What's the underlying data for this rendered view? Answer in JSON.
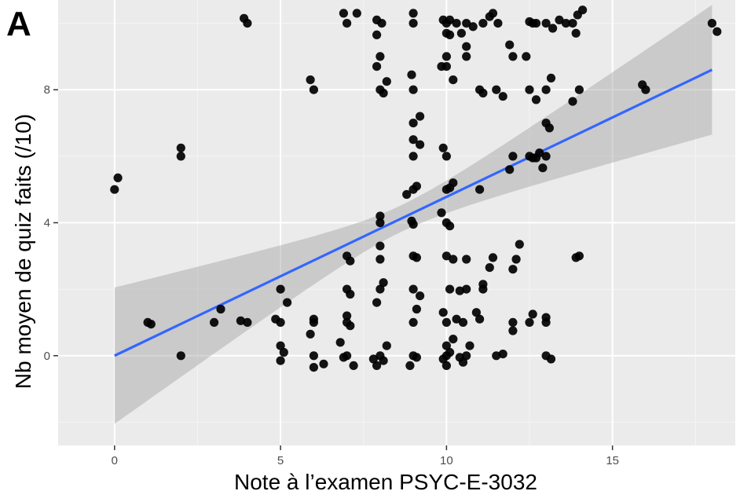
{
  "panel_label": "A",
  "colors": {
    "panel_bg": "#EBEBEB",
    "grid_major": "#FFFFFF",
    "grid_minor": "#F5F5F5",
    "points": "#000000",
    "fit_line": "#3366FF",
    "ci_band": "#999999"
  },
  "chart_data": {
    "type": "scatter",
    "title": "",
    "xlabel": "Note à l’examen PSYC-E-3032",
    "ylabel": "Nb moyen de quiz faits (/10)",
    "xlim": [
      -1.7,
      18.7
    ],
    "ylim": [
      -2.7,
      10.7
    ],
    "x_ticks": [
      0,
      5,
      10,
      15
    ],
    "x_tick_labels": [
      "0",
      "5",
      "10",
      "15"
    ],
    "y_ticks": [
      0,
      4,
      8
    ],
    "y_tick_labels": [
      "0",
      "4",
      "8"
    ],
    "grid": true,
    "legend": "none",
    "fit": {
      "method": "lm",
      "x": [
        0,
        18
      ],
      "y": [
        0.0,
        8.6
      ],
      "ci_lower": [
        -2.05,
        6.65
      ],
      "ci_upper": [
        2.05,
        10.55
      ],
      "x_center": 8.6,
      "y_center": 4.1
    },
    "points": [
      {
        "x": 0.0,
        "y": 5.0
      },
      {
        "x": 0.1,
        "y": 5.35
      },
      {
        "x": 1.0,
        "y": 1.0
      },
      {
        "x": 1.1,
        "y": 0.95
      },
      {
        "x": 2.0,
        "y": 6.0
      },
      {
        "x": 2.0,
        "y": 6.25
      },
      {
        "x": 2.0,
        "y": 0.0
      },
      {
        "x": 3.0,
        "y": 1.0
      },
      {
        "x": 3.2,
        "y": 1.4
      },
      {
        "x": 3.8,
        "y": 1.05
      },
      {
        "x": 4.0,
        "y": 1.0
      },
      {
        "x": 3.9,
        "y": 10.15
      },
      {
        "x": 4.0,
        "y": 10.0
      },
      {
        "x": 4.85,
        "y": 1.1
      },
      {
        "x": 5.0,
        "y": 1.0
      },
      {
        "x": 5.0,
        "y": 2.0
      },
      {
        "x": 5.2,
        "y": 1.6
      },
      {
        "x": 5.0,
        "y": 0.3
      },
      {
        "x": 5.0,
        "y": -0.15
      },
      {
        "x": 5.1,
        "y": 0.1
      },
      {
        "x": 5.9,
        "y": 8.3
      },
      {
        "x": 6.0,
        "y": 8.0
      },
      {
        "x": 6.0,
        "y": 1.1
      },
      {
        "x": 6.0,
        "y": 1.0
      },
      {
        "x": 5.9,
        "y": 0.65
      },
      {
        "x": 6.0,
        "y": 0.0
      },
      {
        "x": 6.0,
        "y": -0.35
      },
      {
        "x": 6.3,
        "y": -0.25
      },
      {
        "x": 6.8,
        "y": 0.4
      },
      {
        "x": 7.0,
        "y": 0.0
      },
      {
        "x": 6.9,
        "y": -0.05
      },
      {
        "x": 7.0,
        "y": 1.2
      },
      {
        "x": 7.0,
        "y": 1.0
      },
      {
        "x": 7.1,
        "y": 0.9
      },
      {
        "x": 7.0,
        "y": 2.0
      },
      {
        "x": 7.1,
        "y": 1.85
      },
      {
        "x": 7.0,
        "y": 3.0
      },
      {
        "x": 7.1,
        "y": 2.85
      },
      {
        "x": 7.2,
        "y": -0.3
      },
      {
        "x": 6.9,
        "y": 10.3
      },
      {
        "x": 7.0,
        "y": 10.0
      },
      {
        "x": 7.3,
        "y": 10.3
      },
      {
        "x": 7.8,
        "y": -0.1
      },
      {
        "x": 7.9,
        "y": -0.3
      },
      {
        "x": 8.0,
        "y": 0.0
      },
      {
        "x": 8.1,
        "y": -0.15
      },
      {
        "x": 8.2,
        "y": 0.3
      },
      {
        "x": 7.9,
        "y": 1.6
      },
      {
        "x": 8.0,
        "y": 2.0
      },
      {
        "x": 8.1,
        "y": 2.2
      },
      {
        "x": 8.0,
        "y": 2.9
      },
      {
        "x": 8.0,
        "y": 3.3
      },
      {
        "x": 8.0,
        "y": 4.0
      },
      {
        "x": 8.0,
        "y": 4.2
      },
      {
        "x": 7.9,
        "y": 8.7
      },
      {
        "x": 8.0,
        "y": 9.0
      },
      {
        "x": 8.0,
        "y": 8.0
      },
      {
        "x": 8.1,
        "y": 7.9
      },
      {
        "x": 8.2,
        "y": 8.25
      },
      {
        "x": 7.9,
        "y": 9.65
      },
      {
        "x": 7.9,
        "y": 10.1
      },
      {
        "x": 8.05,
        "y": 10.0
      },
      {
        "x": 8.9,
        "y": -0.3
      },
      {
        "x": 9.0,
        "y": 0.0
      },
      {
        "x": 9.1,
        "y": -0.05
      },
      {
        "x": 9.0,
        "y": 1.0
      },
      {
        "x": 9.1,
        "y": 1.4
      },
      {
        "x": 9.0,
        "y": 2.0
      },
      {
        "x": 9.2,
        "y": 1.8
      },
      {
        "x": 9.0,
        "y": 3.0
      },
      {
        "x": 9.1,
        "y": 2.95
      },
      {
        "x": 9.0,
        "y": 3.95
      },
      {
        "x": 8.95,
        "y": 4.05
      },
      {
        "x": 9.0,
        "y": 5.0
      },
      {
        "x": 9.1,
        "y": 5.1
      },
      {
        "x": 8.8,
        "y": 4.85
      },
      {
        "x": 9.0,
        "y": 6.0
      },
      {
        "x": 9.0,
        "y": 6.5
      },
      {
        "x": 9.2,
        "y": 6.35
      },
      {
        "x": 9.0,
        "y": 7.0
      },
      {
        "x": 9.2,
        "y": 7.2
      },
      {
        "x": 9.0,
        "y": 8.0
      },
      {
        "x": 8.95,
        "y": 8.45
      },
      {
        "x": 9.0,
        "y": 10.0
      },
      {
        "x": 9.0,
        "y": 10.3
      },
      {
        "x": 9.9,
        "y": -0.1
      },
      {
        "x": 10.0,
        "y": 0.0
      },
      {
        "x": 10.0,
        "y": -0.3
      },
      {
        "x": 10.0,
        "y": 0.3
      },
      {
        "x": 10.1,
        "y": 0.1
      },
      {
        "x": 10.2,
        "y": 0.5
      },
      {
        "x": 9.9,
        "y": 1.3
      },
      {
        "x": 10.0,
        "y": 1.0
      },
      {
        "x": 10.3,
        "y": 1.1
      },
      {
        "x": 10.1,
        "y": 2.0
      },
      {
        "x": 10.0,
        "y": 3.0
      },
      {
        "x": 10.2,
        "y": 2.9
      },
      {
        "x": 9.85,
        "y": 4.3
      },
      {
        "x": 10.0,
        "y": 4.0
      },
      {
        "x": 10.1,
        "y": 3.9
      },
      {
        "x": 10.0,
        "y": 5.0
      },
      {
        "x": 10.1,
        "y": 5.05
      },
      {
        "x": 10.2,
        "y": 5.2
      },
      {
        "x": 9.9,
        "y": 6.25
      },
      {
        "x": 10.0,
        "y": 6.0
      },
      {
        "x": 9.85,
        "y": 8.7
      },
      {
        "x": 10.0,
        "y": 8.7
      },
      {
        "x": 10.2,
        "y": 8.3
      },
      {
        "x": 10.0,
        "y": 9.0
      },
      {
        "x": 10.0,
        "y": 9.7
      },
      {
        "x": 10.1,
        "y": 9.65
      },
      {
        "x": 10.0,
        "y": 10.0
      },
      {
        "x": 9.9,
        "y": 10.1
      },
      {
        "x": 10.1,
        "y": 10.1
      },
      {
        "x": 10.3,
        "y": 10.0
      },
      {
        "x": 10.5,
        "y": -0.2
      },
      {
        "x": 10.6,
        "y": 0.0
      },
      {
        "x": 10.7,
        "y": 0.3
      },
      {
        "x": 10.4,
        "y": -0.05
      },
      {
        "x": 10.5,
        "y": 1.0
      },
      {
        "x": 10.4,
        "y": 1.95
      },
      {
        "x": 10.6,
        "y": 2.0
      },
      {
        "x": 10.6,
        "y": 2.9
      },
      {
        "x": 10.45,
        "y": 9.7
      },
      {
        "x": 10.6,
        "y": 9.0
      },
      {
        "x": 10.6,
        "y": 10.0
      },
      {
        "x": 10.8,
        "y": 9.9
      },
      {
        "x": 10.6,
        "y": 9.3
      },
      {
        "x": 10.9,
        "y": 1.3
      },
      {
        "x": 11.0,
        "y": 1.1
      },
      {
        "x": 11.1,
        "y": 2.0
      },
      {
        "x": 11.1,
        "y": 2.15
      },
      {
        "x": 11.0,
        "y": 5.0
      },
      {
        "x": 11.0,
        "y": 8.0
      },
      {
        "x": 11.1,
        "y": 7.9
      },
      {
        "x": 11.1,
        "y": 10.0
      },
      {
        "x": 11.3,
        "y": 10.2
      },
      {
        "x": 11.5,
        "y": 0.0
      },
      {
        "x": 11.7,
        "y": 0.05
      },
      {
        "x": 11.3,
        "y": 2.65
      },
      {
        "x": 11.4,
        "y": 2.95
      },
      {
        "x": 11.5,
        "y": 8.0
      },
      {
        "x": 11.7,
        "y": 7.8
      },
      {
        "x": 11.4,
        "y": 10.3
      },
      {
        "x": 11.55,
        "y": 10.0
      },
      {
        "x": 11.9,
        "y": 9.35
      },
      {
        "x": 12.0,
        "y": 9.0
      },
      {
        "x": 11.9,
        "y": 5.6
      },
      {
        "x": 12.0,
        "y": 6.0
      },
      {
        "x": 12.0,
        "y": 1.0
      },
      {
        "x": 12.0,
        "y": 0.75
      },
      {
        "x": 12.1,
        "y": 2.9
      },
      {
        "x": 12.0,
        "y": 2.6
      },
      {
        "x": 12.2,
        "y": 3.35
      },
      {
        "x": 12.4,
        "y": 9.0
      },
      {
        "x": 12.5,
        "y": 10.05
      },
      {
        "x": 12.6,
        "y": 10.0
      },
      {
        "x": 12.5,
        "y": 8.0
      },
      {
        "x": 12.7,
        "y": 7.7
      },
      {
        "x": 12.5,
        "y": 6.0
      },
      {
        "x": 12.6,
        "y": 5.95
      },
      {
        "x": 12.7,
        "y": 5.95
      },
      {
        "x": 12.8,
        "y": 6.1
      },
      {
        "x": 12.5,
        "y": 1.0
      },
      {
        "x": 12.6,
        "y": 1.25
      },
      {
        "x": 12.7,
        "y": 10.0
      },
      {
        "x": 12.9,
        "y": 5.65
      },
      {
        "x": 13.0,
        "y": 6.0
      },
      {
        "x": 13.0,
        "y": 7.0
      },
      {
        "x": 13.1,
        "y": 6.85
      },
      {
        "x": 13.0,
        "y": 8.0
      },
      {
        "x": 13.15,
        "y": 8.35
      },
      {
        "x": 13.0,
        "y": 10.0
      },
      {
        "x": 13.2,
        "y": 9.85
      },
      {
        "x": 13.0,
        "y": 1.0
      },
      {
        "x": 13.0,
        "y": 1.15
      },
      {
        "x": 13.0,
        "y": 0.0
      },
      {
        "x": 13.15,
        "y": -0.1
      },
      {
        "x": 13.4,
        "y": 10.1
      },
      {
        "x": 13.6,
        "y": 10.0
      },
      {
        "x": 13.8,
        "y": 10.0
      },
      {
        "x": 13.9,
        "y": 9.7
      },
      {
        "x": 13.95,
        "y": 10.25
      },
      {
        "x": 13.8,
        "y": 7.65
      },
      {
        "x": 14.0,
        "y": 8.0
      },
      {
        "x": 14.1,
        "y": 10.4
      },
      {
        "x": 13.9,
        "y": 2.95
      },
      {
        "x": 14.0,
        "y": 3.0
      },
      {
        "x": 15.9,
        "y": 8.15
      },
      {
        "x": 16.0,
        "y": 8.0
      },
      {
        "x": 18.0,
        "y": 10.0
      },
      {
        "x": 18.15,
        "y": 9.75
      }
    ]
  }
}
